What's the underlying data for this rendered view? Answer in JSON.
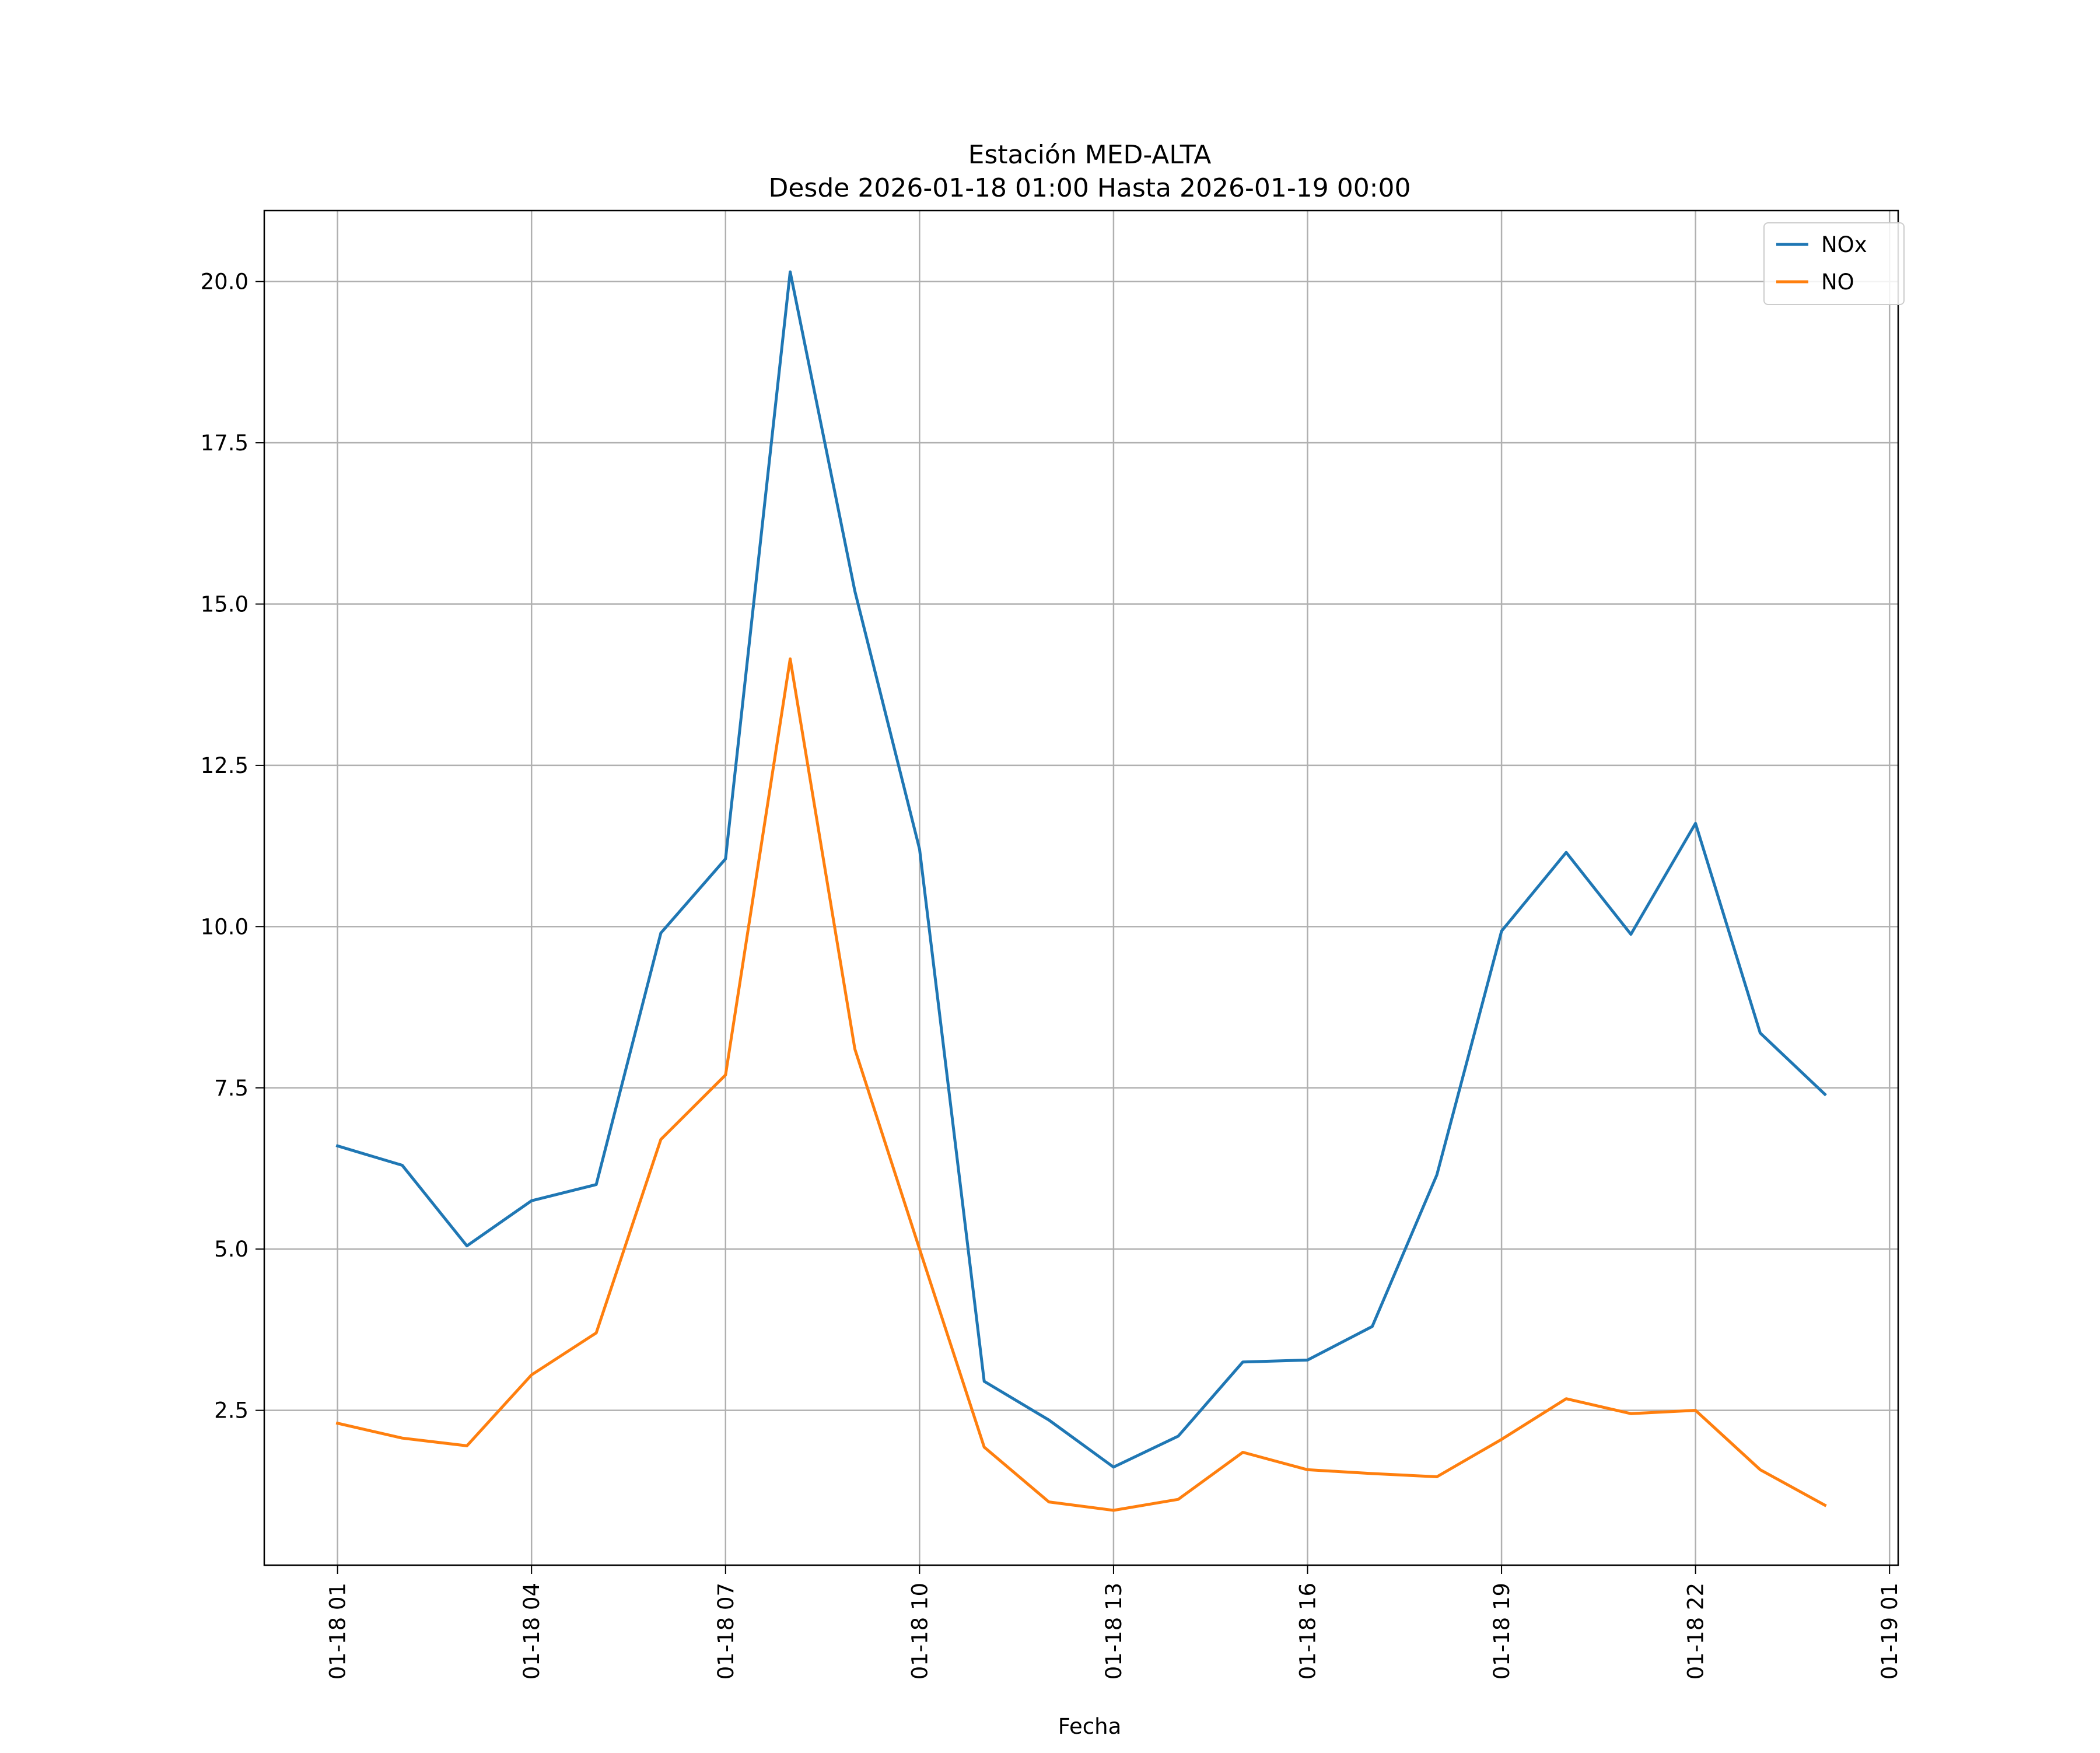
{
  "chart_data": {
    "type": "line",
    "title": "Estación MED-ALTA",
    "subtitle": "Desde 2026-01-18 01:00 Hasta 2026-01-19 00:00",
    "xlabel": "Fecha",
    "ylabel": "",
    "x": [
      "2026-01-18 01:00",
      "2026-01-18 02:00",
      "2026-01-18 03:00",
      "2026-01-18 04:00",
      "2026-01-18 05:00",
      "2026-01-18 06:00",
      "2026-01-18 07:00",
      "2026-01-18 08:00",
      "2026-01-18 09:00",
      "2026-01-18 10:00",
      "2026-01-18 11:00",
      "2026-01-18 12:00",
      "2026-01-18 13:00",
      "2026-01-18 14:00",
      "2026-01-18 15:00",
      "2026-01-18 16:00",
      "2026-01-18 17:00",
      "2026-01-18 18:00",
      "2026-01-18 19:00",
      "2026-01-18 20:00",
      "2026-01-18 21:00",
      "2026-01-18 22:00",
      "2026-01-18 23:00",
      "2026-01-19 00:00"
    ],
    "x_tick_labels": [
      "01-18 01",
      "01-18 04",
      "01-18 07",
      "01-18 10",
      "01-18 13",
      "01-18 16",
      "01-18 19",
      "01-18 22",
      "01-19 01"
    ],
    "x_tick_positions": [
      "2026-01-18 01:00",
      "2026-01-18 04:00",
      "2026-01-18 07:00",
      "2026-01-18 10:00",
      "2026-01-18 13:00",
      "2026-01-18 16:00",
      "2026-01-18 19:00",
      "2026-01-18 22:00",
      "2026-01-19 01:00"
    ],
    "xlim": [
      "2026-01-17 23:52",
      "2026-01-19 01:08"
    ],
    "y_ticks": [
      2.5,
      5.0,
      7.5,
      10.0,
      12.5,
      15.0,
      17.5,
      20.0
    ],
    "y_tick_labels": [
      "2.5",
      "5.0",
      "7.5",
      "10.0",
      "12.5",
      "15.0",
      "17.5",
      "20.0"
    ],
    "ylim": [
      0.1,
      21.1
    ],
    "grid": true,
    "legend": "top-right",
    "series": [
      {
        "name": "NOx",
        "color": "#1f77b4",
        "values": [
          6.6,
          6.3,
          5.05,
          5.75,
          6.0,
          9.9,
          11.05,
          20.15,
          15.2,
          11.2,
          2.95,
          2.35,
          1.62,
          2.1,
          3.25,
          3.28,
          3.8,
          6.15,
          9.93,
          11.15,
          9.88,
          11.6,
          8.35,
          7.4
        ]
      },
      {
        "name": "NO",
        "color": "#ff7f0e",
        "values": [
          2.3,
          2.07,
          1.95,
          3.05,
          3.7,
          6.7,
          7.7,
          14.15,
          8.1,
          5.0,
          1.93,
          1.08,
          0.95,
          1.12,
          1.85,
          1.58,
          1.52,
          1.47,
          2.05,
          2.68,
          2.45,
          2.5,
          1.58,
          1.03
        ]
      }
    ]
  }
}
